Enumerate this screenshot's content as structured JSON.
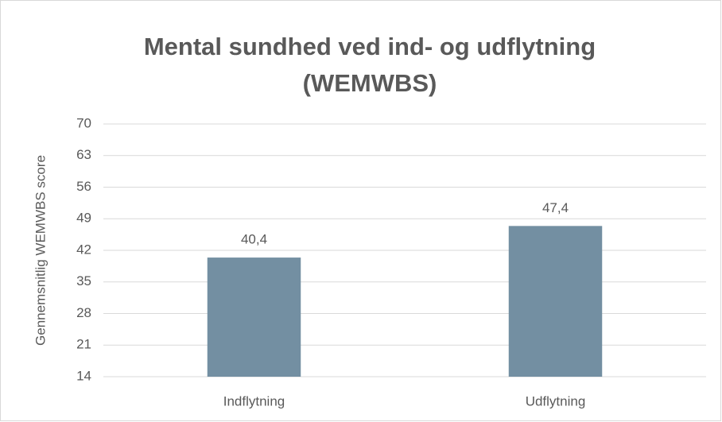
{
  "chart_data": {
    "type": "bar",
    "title": "Mental sundhed ved ind- og udflytning (WEMWBS)",
    "y_label": "Gennemsnitlig WEMWBS score",
    "categories": [
      "Indflytning",
      "Udflytning"
    ],
    "values": [
      40.4,
      47.4
    ],
    "value_labels": [
      "40,4",
      "47,4"
    ],
    "color": "#738fa2",
    "ylim": [
      14,
      70
    ],
    "yticks": [
      14,
      21,
      28,
      35,
      42,
      49,
      56,
      63,
      70
    ],
    "grid": true
  }
}
